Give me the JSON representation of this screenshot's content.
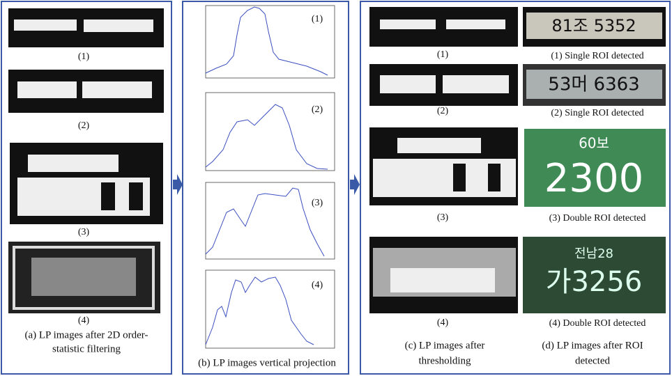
{
  "panel_a": {
    "labels": [
      "(1)",
      "(2)",
      "(3)",
      "(4)"
    ],
    "caption": [
      "(a) LP images after 2D order-",
      "statistic filtering"
    ]
  },
  "panel_b": {
    "labels": [
      "(1)",
      "(2)",
      "(3)",
      "(4)"
    ],
    "caption": "(b) LP images vertical projection"
  },
  "panel_c": {
    "labels": [
      "(1)",
      "(2)",
      "(3)",
      "(4)"
    ],
    "caption": [
      "(c) LP images after",
      "thresholding"
    ]
  },
  "panel_d": {
    "labels": [
      "(1) Single ROI detected",
      "(2) Single ROI detected",
      "(3) Double ROI detected",
      "(4) Double ROI detected"
    ],
    "caption": [
      "(d) LP images after ROI",
      "detected"
    ],
    "plates": [
      "81조 5352",
      "53머 6363",
      "60보",
      "2300",
      "전남28",
      "가3256"
    ]
  }
}
